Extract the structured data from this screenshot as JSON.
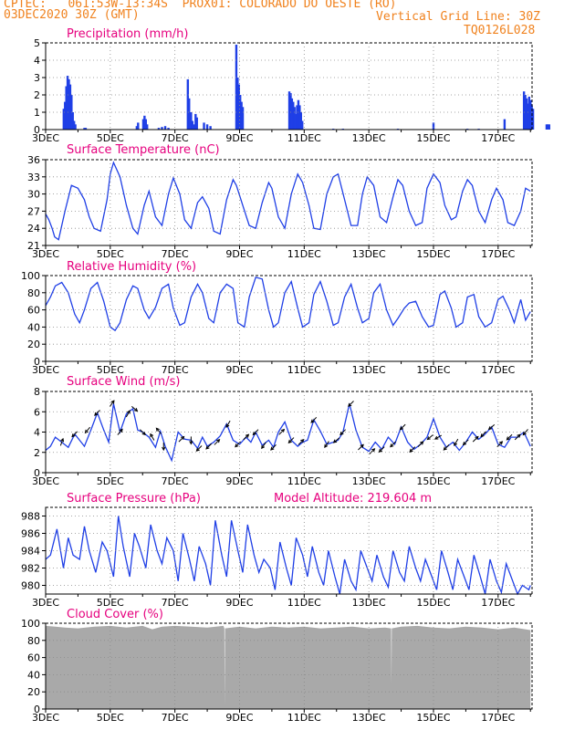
{
  "header": {
    "line1": "CPTEC:   061:53W-13:34S  PROX01: COLORADO DO OESTE (RO)",
    "line2_left": "03DEC2020 30Z (GMT)",
    "line2_right": "Vertical Grid Line: 30Z",
    "line3_right": "TQ0126L028",
    "model_altitude": "Model Altitude: 219.604 m"
  },
  "colors": {
    "header": "#f0821e",
    "title": "#e6007e",
    "line": "#1f3fe6",
    "cloud": "#a9a9a9"
  },
  "x_tick_labels": [
    "3DEC",
    "5DEC",
    "7DEC",
    "9DEC",
    "11DEC",
    "13DEC",
    "15DEC",
    "17DEC"
  ],
  "chart_data": [
    {
      "type": "bar",
      "title": "Precipitation (mm/h)",
      "ylim": [
        0,
        5
      ],
      "yticks": [
        0,
        1,
        2,
        3,
        4,
        5
      ],
      "x_days": [
        0.56,
        0.6,
        0.64,
        0.68,
        0.72,
        0.76,
        0.8,
        0.84,
        0.88,
        0.92,
        1.2,
        1.24,
        2.82,
        2.86,
        3.02,
        3.06,
        3.1,
        3.14,
        3.5,
        3.6,
        3.7,
        3.8,
        4.4,
        4.44,
        4.5,
        4.54,
        4.6,
        4.64,
        4.68,
        4.9,
        5.0,
        5.1,
        5.9,
        5.94,
        5.98,
        6.02,
        6.06,
        6.1,
        7.54,
        7.58,
        7.62,
        7.66,
        7.7,
        7.74,
        7.78,
        7.82,
        7.86,
        7.9,
        7.94,
        8.9,
        9.2,
        10.9,
        12.0,
        13.05,
        13.4,
        14.2,
        14.8,
        14.84,
        14.88,
        14.92,
        14.96,
        15.0,
        15.04,
        15.08,
        15.5,
        15.54,
        15.58
      ],
      "values": [
        1.2,
        1.6,
        2.5,
        3.1,
        2.9,
        2.6,
        2.0,
        1.0,
        0.5,
        0.3,
        0.1,
        0.1,
        0.2,
        0.4,
        0.6,
        0.8,
        0.6,
        0.3,
        0.1,
        0.15,
        0.2,
        0.1,
        2.9,
        1.8,
        1.0,
        0.5,
        0.3,
        0.9,
        0.7,
        0.4,
        0.3,
        0.2,
        4.9,
        3.0,
        2.6,
        2.0,
        1.6,
        1.3,
        2.2,
        2.1,
        1.8,
        1.6,
        1.3,
        0.9,
        1.4,
        1.7,
        1.4,
        1.0,
        0.5,
        0.05,
        0.05,
        0.05,
        0.4,
        0.05,
        0.05,
        0.6,
        2.2,
        2.0,
        1.8,
        1.5,
        1.9,
        1.7,
        1.4,
        1.2,
        0.3,
        0.3,
        0.3
      ],
      "xlabel": "",
      "ylabel": ""
    },
    {
      "type": "line",
      "title": "Surface Temperature (nC)",
      "ylim": [
        21,
        36
      ],
      "yticks": [
        21,
        24,
        27,
        30,
        33,
        36
      ],
      "x_days": [
        0.0,
        0.1,
        0.2,
        0.28,
        0.4,
        0.6,
        0.8,
        1.0,
        1.2,
        1.35,
        1.5,
        1.7,
        1.9,
        2.0,
        2.1,
        2.3,
        2.5,
        2.7,
        2.85,
        3.05,
        3.2,
        3.4,
        3.6,
        3.8,
        3.95,
        4.15,
        4.3,
        4.5,
        4.7,
        4.85,
        5.05,
        5.2,
        5.4,
        5.6,
        5.8,
        5.9,
        6.1,
        6.3,
        6.5,
        6.7,
        6.9,
        7.0,
        7.2,
        7.4,
        7.6,
        7.8,
        7.95,
        8.15,
        8.3,
        8.5,
        8.7,
        8.9,
        9.05,
        9.25,
        9.45,
        9.65,
        9.8,
        9.95,
        10.15,
        10.35,
        10.55,
        10.75,
        10.9,
        11.05,
        11.25,
        11.45,
        11.65,
        11.8,
        12.0,
        12.2,
        12.35,
        12.55,
        12.7,
        12.9,
        13.05,
        13.2,
        13.4,
        13.6,
        13.8,
        13.95,
        14.15,
        14.3,
        14.5,
        14.7,
        14.85,
        15.0
      ],
      "values": [
        26.5,
        25.5,
        24.0,
        22.5,
        22.0,
        27.0,
        31.5,
        31.0,
        29.0,
        26.0,
        24.0,
        23.5,
        29.0,
        33.5,
        35.5,
        33.0,
        28.0,
        24.0,
        23.0,
        28.0,
        30.5,
        26.0,
        24.5,
        30.0,
        32.8,
        30.0,
        25.5,
        24.0,
        28.5,
        29.5,
        27.5,
        23.5,
        23.0,
        29.0,
        32.5,
        31.5,
        28.0,
        24.5,
        24.0,
        28.5,
        32.0,
        31.0,
        26.0,
        24.0,
        30.0,
        33.5,
        32.0,
        28.0,
        24.0,
        23.8,
        30.0,
        33.0,
        33.5,
        29.0,
        24.5,
        24.5,
        30.0,
        33.0,
        31.5,
        26.0,
        25.0,
        29.5,
        32.5,
        31.5,
        27.0,
        24.5,
        25.0,
        31.0,
        33.5,
        32.0,
        28.0,
        25.5,
        26.0,
        30.5,
        32.5,
        31.5,
        27.0,
        25.0,
        29.0,
        31.0,
        29.0,
        25.0,
        24.5,
        27.0,
        31.0,
        30.5
      ],
      "xlabel": "",
      "ylabel": ""
    },
    {
      "type": "line",
      "title": "Relative Humidity (%)",
      "ylim": [
        0,
        100
      ],
      "yticks": [
        0,
        20,
        40,
        60,
        80,
        100
      ],
      "x_days": [
        0.0,
        0.15,
        0.3,
        0.5,
        0.7,
        0.9,
        1.05,
        1.2,
        1.4,
        1.6,
        1.8,
        2.0,
        2.15,
        2.3,
        2.5,
        2.7,
        2.85,
        3.05,
        3.2,
        3.4,
        3.6,
        3.8,
        3.95,
        4.15,
        4.3,
        4.5,
        4.7,
        4.85,
        5.05,
        5.2,
        5.4,
        5.6,
        5.8,
        5.95,
        6.15,
        6.3,
        6.5,
        6.7,
        6.9,
        7.05,
        7.2,
        7.4,
        7.6,
        7.8,
        7.95,
        8.15,
        8.3,
        8.5,
        8.7,
        8.9,
        9.05,
        9.25,
        9.45,
        9.65,
        9.8,
        10.0,
        10.15,
        10.35,
        10.55,
        10.75,
        10.9,
        11.1,
        11.25,
        11.45,
        11.65,
        11.85,
        12.0,
        12.2,
        12.35,
        12.55,
        12.7,
        12.9,
        13.05,
        13.25,
        13.4,
        13.6,
        13.8,
        14.0,
        14.15,
        14.35,
        14.5,
        14.7,
        14.85,
        15.0
      ],
      "values": [
        65,
        75,
        88,
        92,
        80,
        55,
        45,
        60,
        85,
        92,
        70,
        40,
        36,
        45,
        72,
        88,
        85,
        60,
        50,
        63,
        85,
        90,
        62,
        42,
        45,
        75,
        90,
        80,
        50,
        45,
        80,
        90,
        85,
        45,
        40,
        75,
        98,
        96,
        60,
        40,
        45,
        80,
        93,
        62,
        40,
        45,
        78,
        93,
        70,
        42,
        45,
        75,
        90,
        62,
        45,
        50,
        80,
        90,
        60,
        42,
        50,
        62,
        68,
        70,
        52,
        40,
        42,
        78,
        82,
        62,
        40,
        45,
        75,
        78,
        52,
        40,
        45,
        72,
        76,
        60,
        45,
        72,
        48,
        58
      ],
      "xlabel": "",
      "ylabel": ""
    },
    {
      "type": "line",
      "title": "Surface Wind (m/s)",
      "ylim": [
        0,
        8
      ],
      "yticks": [
        0,
        2,
        4,
        6,
        8
      ],
      "x_days": [
        0.0,
        0.15,
        0.3,
        0.5,
        0.7,
        0.9,
        1.05,
        1.2,
        1.4,
        1.6,
        1.8,
        1.95,
        2.1,
        2.3,
        2.5,
        2.7,
        2.85,
        3.0,
        3.2,
        3.4,
        3.55,
        3.7,
        3.9,
        4.1,
        4.3,
        4.5,
        4.7,
        4.85,
        5.0,
        5.2,
        5.4,
        5.6,
        5.8,
        6.0,
        6.2,
        6.35,
        6.5,
        6.7,
        6.9,
        7.05,
        7.2,
        7.4,
        7.6,
        7.8,
        7.95,
        8.1,
        8.3,
        8.5,
        8.7,
        8.9,
        9.05,
        9.2,
        9.4,
        9.6,
        9.8,
        10.0,
        10.2,
        10.4,
        10.6,
        10.8,
        11.0,
        11.2,
        11.4,
        11.6,
        11.8,
        12.0,
        12.2,
        12.4,
        12.6,
        12.8,
        13.0,
        13.2,
        13.4,
        13.6,
        13.8,
        14.0,
        14.2,
        14.4,
        14.6,
        14.8,
        15.0
      ],
      "values": [
        2.2,
        2.6,
        3.5,
        3.0,
        2.5,
        3.8,
        3.2,
        2.6,
        4.2,
        5.9,
        4.2,
        3.0,
        6.8,
        4.0,
        5.8,
        6.3,
        4.2,
        4.0,
        3.5,
        2.5,
        4.1,
        2.6,
        1.2,
        4.0,
        3.3,
        3.2,
        2.4,
        3.5,
        2.6,
        3.0,
        3.6,
        4.8,
        3.2,
        2.8,
        3.5,
        3.0,
        4.0,
        2.7,
        3.2,
        2.5,
        4.0,
        5.0,
        3.2,
        2.6,
        3.0,
        3.2,
        5.2,
        4.1,
        2.8,
        3.0,
        3.2,
        4.0,
        6.8,
        4.2,
        2.5,
        2.1,
        3.0,
        2.3,
        3.5,
        2.8,
        4.5,
        3.0,
        2.3,
        2.8,
        3.5,
        5.3,
        3.5,
        2.5,
        3.0,
        2.2,
        3.0,
        4.0,
        3.3,
        3.8,
        4.5,
        2.8,
        2.5,
        3.5,
        3.5,
        4.0,
        2.6
      ],
      "arrow_x_days": [
        0.5,
        0.9,
        1.3,
        1.6,
        2.05,
        2.3,
        2.55,
        2.75,
        3.0,
        3.3,
        3.5,
        3.65,
        4.2,
        4.5,
        4.75,
        5.05,
        5.3,
        5.65,
        5.95,
        6.2,
        6.5,
        6.75,
        7.05,
        7.3,
        7.6,
        7.9,
        8.3,
        8.7,
        9.0,
        9.2,
        9.45,
        9.75,
        10.1,
        10.4,
        10.75,
        11.05,
        11.35,
        11.6,
        11.9,
        12.15,
        12.4,
        12.7,
        13.0,
        13.3,
        13.55,
        13.8,
        14.05,
        14.35,
        14.6,
        14.85
      ],
      "arrow_directions_deg": [
        20,
        225,
        220,
        225,
        35,
        40,
        30,
        130,
        135,
        330,
        320,
        180,
        45,
        180,
        225,
        225,
        45,
        210,
        225,
        45,
        225,
        215,
        225,
        45,
        225,
        45,
        225,
        215,
        230,
        225,
        225,
        45,
        45,
        225,
        225,
        225,
        225,
        45,
        230,
        240,
        225,
        210,
        225,
        45,
        225,
        230,
        45,
        225,
        45,
        220
      ],
      "xlabel": "",
      "ylabel": ""
    },
    {
      "type": "line",
      "title": "Surface Pressure (hPa)",
      "ylim": [
        979,
        989
      ],
      "yticks": [
        980,
        982,
        984,
        986,
        988
      ],
      "x_days": [
        0.0,
        0.15,
        0.35,
        0.55,
        0.7,
        0.85,
        1.05,
        1.2,
        1.35,
        1.55,
        1.75,
        1.9,
        2.1,
        2.25,
        2.4,
        2.6,
        2.75,
        2.9,
        3.1,
        3.25,
        3.45,
        3.6,
        3.75,
        3.95,
        4.1,
        4.25,
        4.45,
        4.6,
        4.75,
        4.95,
        5.1,
        5.25,
        5.45,
        5.6,
        5.75,
        5.95,
        6.1,
        6.25,
        6.45,
        6.6,
        6.75,
        6.95,
        7.1,
        7.25,
        7.45,
        7.6,
        7.75,
        7.95,
        8.1,
        8.25,
        8.45,
        8.6,
        8.75,
        8.95,
        9.1,
        9.25,
        9.45,
        9.6,
        9.75,
        9.95,
        10.1,
        10.25,
        10.45,
        10.6,
        10.75,
        10.95,
        11.1,
        11.25,
        11.45,
        11.6,
        11.75,
        11.95,
        12.1,
        12.25,
        12.45,
        12.6,
        12.75,
        12.95,
        13.1,
        13.25,
        13.45,
        13.6,
        13.75,
        13.95,
        14.1,
        14.25,
        14.45,
        14.6,
        14.75,
        14.95,
        15.0
      ],
      "values": [
        983.0,
        983.5,
        986.5,
        982.0,
        985.5,
        983.5,
        983.0,
        986.8,
        984.0,
        981.5,
        985.0,
        984.0,
        981.0,
        988.0,
        984.5,
        981.0,
        986.0,
        984.5,
        982.0,
        987.0,
        984.0,
        982.5,
        985.5,
        984.0,
        980.5,
        986.0,
        983.0,
        980.5,
        984.5,
        982.5,
        980.0,
        987.5,
        983.5,
        981.0,
        987.5,
        984.0,
        981.5,
        987.0,
        983.5,
        981.5,
        983.0,
        982.0,
        979.5,
        985.0,
        982.0,
        980.0,
        985.5,
        983.5,
        981.0,
        984.5,
        981.5,
        980.0,
        984.0,
        981.0,
        979.0,
        983.0,
        980.5,
        979.5,
        984.0,
        982.0,
        980.5,
        983.5,
        981.0,
        979.8,
        984.0,
        981.5,
        980.5,
        984.5,
        982.0,
        980.5,
        983.0,
        981.0,
        979.5,
        984.0,
        981.5,
        979.5,
        983.0,
        981.0,
        979.5,
        983.5,
        981.0,
        979.0,
        983.0,
        980.5,
        979.2,
        982.5,
        980.5,
        979.0,
        980.0,
        979.5,
        980.0
      ],
      "xlabel": "",
      "ylabel": ""
    },
    {
      "type": "area",
      "title": "Cloud Cover (%)",
      "ylim": [
        0,
        100
      ],
      "yticks": [
        0,
        20,
        40,
        60,
        80,
        100
      ],
      "x_days": [
        0.0,
        0.3,
        0.6,
        1.0,
        1.5,
        2.0,
        2.5,
        3.0,
        3.3,
        3.6,
        4.0,
        4.5,
        5.0,
        5.5,
        6.0,
        6.5,
        7.0,
        7.5,
        8.0,
        8.5,
        9.0,
        9.5,
        10.0,
        10.5,
        11.0,
        11.5,
        12.0,
        12.5,
        13.0,
        13.5,
        14.0,
        14.5,
        15.0
      ],
      "values": [
        97,
        96,
        95,
        94,
        96,
        97,
        95,
        97,
        93,
        96,
        97,
        96,
        95,
        97,
        96,
        94,
        96,
        95,
        96,
        94,
        95,
        96,
        94,
        95,
        96,
        97,
        95,
        94,
        96,
        95,
        93,
        95,
        92
      ],
      "dips": [
        {
          "x_day": 5.54,
          "value": 3
        },
        {
          "x_day": 10.7,
          "value": 30
        }
      ],
      "xlabel": "",
      "ylabel": ""
    }
  ]
}
